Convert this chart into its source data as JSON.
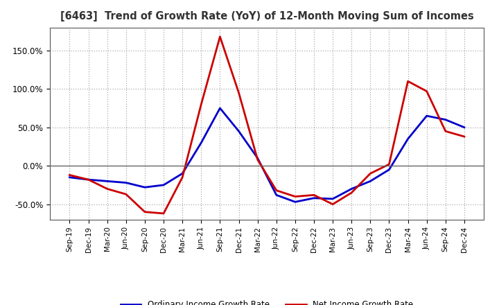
{
  "title": "[6463]  Trend of Growth Rate (YoY) of 12-Month Moving Sum of Incomes",
  "x_labels": [
    "Sep-19",
    "Dec-19",
    "Mar-20",
    "Jun-20",
    "Sep-20",
    "Dec-20",
    "Mar-21",
    "Jun-21",
    "Sep-21",
    "Dec-21",
    "Mar-22",
    "Jun-22",
    "Sep-22",
    "Dec-22",
    "Mar-23",
    "Jun-23",
    "Sep-23",
    "Dec-23",
    "Mar-24",
    "Jun-24",
    "Sep-24",
    "Dec-24"
  ],
  "ordinary_income": [
    -0.15,
    -0.18,
    -0.2,
    -0.22,
    -0.28,
    -0.25,
    -0.1,
    0.3,
    0.75,
    0.45,
    0.1,
    -0.38,
    -0.47,
    -0.42,
    -0.43,
    -0.3,
    -0.2,
    -0.05,
    0.35,
    0.65,
    0.6,
    0.5
  ],
  "net_income": [
    -0.12,
    -0.18,
    -0.3,
    -0.37,
    -0.6,
    -0.62,
    -0.15,
    0.8,
    1.68,
    0.95,
    0.08,
    -0.32,
    -0.4,
    -0.38,
    -0.5,
    -0.35,
    -0.1,
    0.02,
    1.1,
    0.97,
    0.45,
    0.38
  ],
  "ordinary_color": "#0000cc",
  "net_income_color": "#cc0000",
  "ylim_min": -0.7,
  "ylim_max": 1.8,
  "yticks": [
    -0.5,
    0.0,
    0.5,
    1.0,
    1.5
  ],
  "background_color": "#ffffff",
  "grid_color": "#999999",
  "legend_ordinary": "Ordinary Income Growth Rate",
  "legend_net": "Net Income Growth Rate"
}
